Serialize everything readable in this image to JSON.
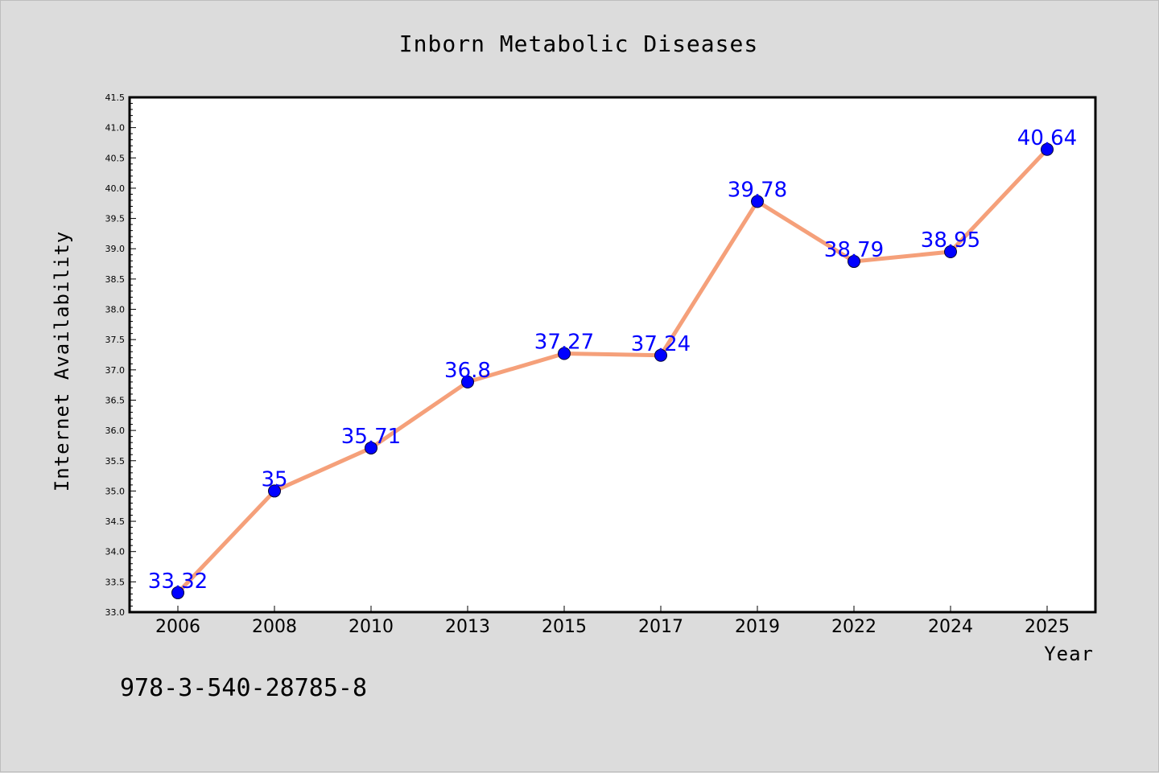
{
  "chart_data": {
    "type": "line",
    "title": "Inborn Metabolic Diseases",
    "xlabel": "Year",
    "ylabel": "Internet Availability",
    "categories": [
      "2006",
      "2008",
      "2010",
      "2013",
      "2015",
      "2017",
      "2019",
      "2022",
      "2024",
      "2025"
    ],
    "values": [
      33.32,
      35,
      35.71,
      36.8,
      37.27,
      37.24,
      39.78,
      38.79,
      38.95,
      40.64
    ],
    "value_labels": [
      "33.32",
      "35",
      "35.71",
      "36.8",
      "37.27",
      "37.24",
      "39.78",
      "38.79",
      "38.95",
      "40.64"
    ],
    "ylim": [
      33.0,
      41.5
    ],
    "yticks": [
      "33.0",
      "33.5",
      "34.0",
      "34.5",
      "35.0",
      "35.5",
      "36.0",
      "36.5",
      "37.0",
      "37.5",
      "38.0",
      "38.5",
      "39.0",
      "39.5",
      "40.0",
      "40.5",
      "41.0",
      "41.5"
    ],
    "grid": false,
    "line_color": "#f5a07a",
    "marker_color": "#0000ff",
    "label_color": "#0000ff"
  },
  "footnote": "978-3-540-28785-8"
}
